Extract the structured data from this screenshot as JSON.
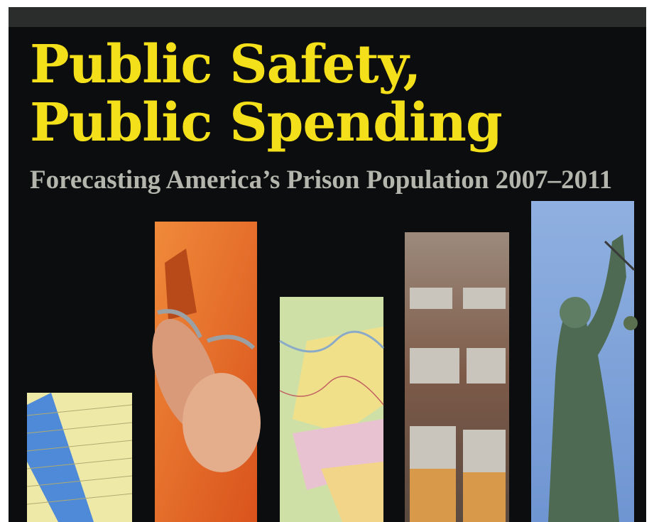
{
  "cover": {
    "title_line1": "Public Safety,",
    "title_line2": "Public Spending",
    "subtitle": "Forecasting America’s Prison Population 2007–2011"
  }
}
